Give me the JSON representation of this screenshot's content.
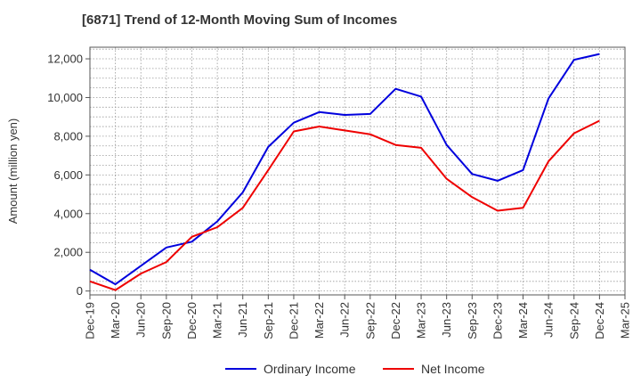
{
  "chart_data": {
    "type": "line",
    "title": "[6871]  Trend of 12-Month Moving Sum of Incomes",
    "xlabel": "",
    "ylabel": "Amount (million yen)",
    "categories": [
      "Dec-19",
      "Mar-20",
      "Jun-20",
      "Sep-20",
      "Dec-20",
      "Mar-21",
      "Jun-21",
      "Sep-21",
      "Dec-21",
      "Mar-22",
      "Jun-22",
      "Sep-22",
      "Dec-22",
      "Mar-23",
      "Jun-23",
      "Sep-23",
      "Dec-23",
      "Mar-24",
      "Jun-24",
      "Sep-24",
      "Dec-24",
      "Mar-25"
    ],
    "ylim": [
      -200,
      12600
    ],
    "yticks": [
      0,
      2000,
      4000,
      6000,
      8000,
      10000,
      12000
    ],
    "ytick_labels": [
      "0",
      "2,000",
      "4,000",
      "6,000",
      "8,000",
      "10,000",
      "12,000"
    ],
    "grid": true,
    "legend_position": "bottom",
    "series": [
      {
        "name": "Ordinary Income",
        "color": "#0000dd",
        "values": [
          1100,
          350,
          1300,
          2250,
          2550,
          3600,
          5100,
          7450,
          8700,
          9250,
          9100,
          9150,
          10450,
          10050,
          7550,
          6050,
          5700,
          6250,
          9950,
          11950,
          12250,
          null
        ]
      },
      {
        "name": "Net Income",
        "color": "#ee0000",
        "values": [
          500,
          50,
          900,
          1500,
          2800,
          3300,
          4300,
          6250,
          8250,
          8500,
          8300,
          8100,
          7550,
          7400,
          5800,
          4850,
          4150,
          4300,
          6700,
          8150,
          8800,
          null
        ]
      }
    ]
  }
}
